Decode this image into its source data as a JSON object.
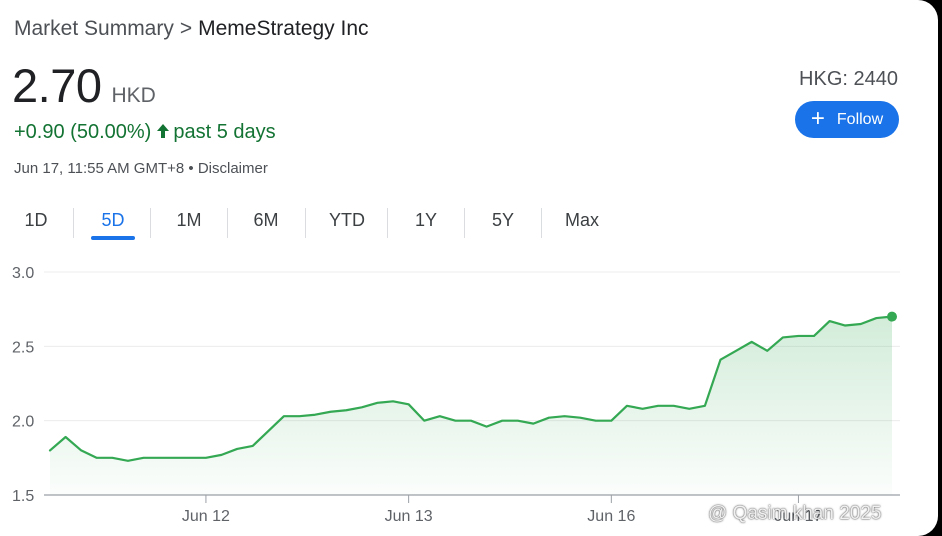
{
  "breadcrumb": {
    "root": "Market Summary",
    "separator": ">",
    "company": "MemeStrategy Inc"
  },
  "quote": {
    "price": "2.70",
    "currency": "HKD",
    "change": "+0.90 (50.00%)",
    "change_arrow_icon": "arrow-up-icon",
    "period": "past 5 days",
    "timestamp": "Jun 17, 11:55 AM GMT+8",
    "bullet": "•",
    "disclaimer": "Disclaimer",
    "ticker": "HKG: 2440"
  },
  "follow": {
    "label": "Follow",
    "icon": "plus-icon"
  },
  "tabs": [
    {
      "label": "1D",
      "active": false
    },
    {
      "label": "5D",
      "active": true
    },
    {
      "label": "1M",
      "active": false
    },
    {
      "label": "6M",
      "active": false
    },
    {
      "label": "YTD",
      "active": false
    },
    {
      "label": "1Y",
      "active": false
    },
    {
      "label": "5Y",
      "active": false
    },
    {
      "label": "Max",
      "active": false
    }
  ],
  "colors": {
    "positive": "#137333",
    "line": "#34a853",
    "accent": "#1a73e8"
  },
  "watermark": "@ Qasim khan 2025",
  "chart_data": {
    "type": "area",
    "title": "",
    "xlabel": "",
    "ylabel": "",
    "ylim": [
      1.5,
      3.0
    ],
    "y_ticks": [
      "3.0",
      "2.5",
      "2.0",
      "1.5"
    ],
    "grid": true,
    "x_tick_labels": [
      {
        "label": "Jun 12",
        "index": 10
      },
      {
        "label": "Jun 13",
        "index": 23
      },
      {
        "label": "Jun 16",
        "index": 36
      },
      {
        "label": "Jun 17",
        "index": 48
      }
    ],
    "values": [
      1.8,
      1.89,
      1.8,
      1.75,
      1.75,
      1.73,
      1.75,
      1.75,
      1.75,
      1.75,
      1.75,
      1.77,
      1.81,
      1.83,
      1.93,
      2.03,
      2.03,
      2.04,
      2.06,
      2.07,
      2.09,
      2.12,
      2.13,
      2.11,
      2.0,
      2.03,
      2.0,
      2.0,
      1.96,
      2.0,
      2.0,
      1.98,
      2.02,
      2.03,
      2.02,
      2.0,
      2.0,
      2.1,
      2.08,
      2.1,
      2.1,
      2.08,
      2.1,
      2.41,
      2.47,
      2.53,
      2.47,
      2.56,
      2.57,
      2.57,
      2.67,
      2.64,
      2.65,
      2.69,
      2.7
    ]
  }
}
